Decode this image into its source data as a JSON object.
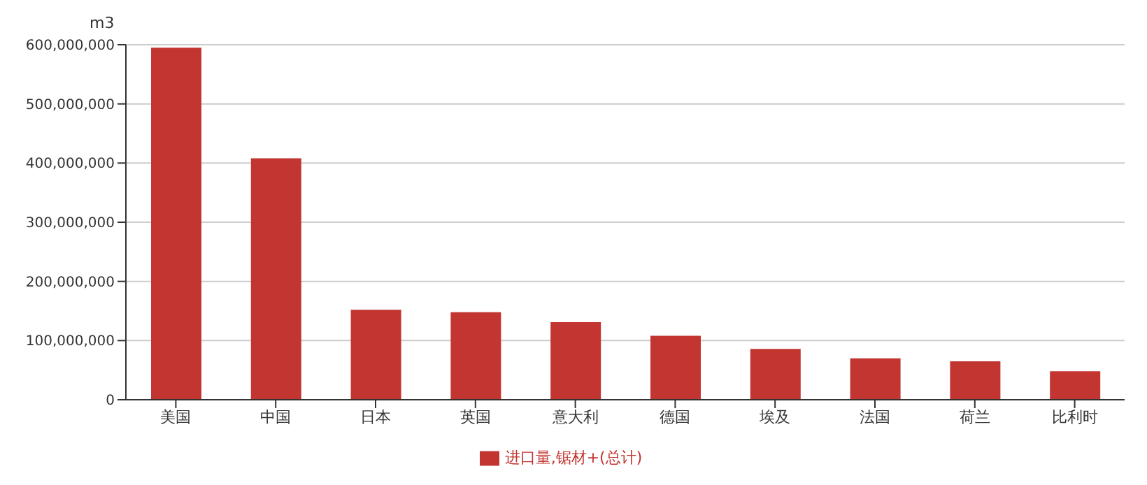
{
  "chart_data": {
    "type": "bar",
    "ylabel": "m3",
    "categories": [
      "美国",
      "中国",
      "日本",
      "英国",
      "意大利",
      "德国",
      "埃及",
      "法国",
      "荷兰",
      "比利时"
    ],
    "series": [
      {
        "name": "进口量,锯材+(总计)",
        "color": "#c23531",
        "values": [
          595000000,
          408000000,
          152000000,
          148000000,
          131000000,
          108000000,
          86000000,
          70000000,
          65000000,
          48000000
        ]
      }
    ],
    "ylim": [
      0,
      600000000
    ],
    "yticks": [
      0,
      {
        "value": 100000000,
        "label": "100,000,000"
      },
      {
        "value": 200000000,
        "label": "200,000,000"
      },
      {
        "value": 300000000,
        "label": "300,000,000"
      },
      {
        "value": 400000000,
        "label": "400,000,000"
      },
      {
        "value": 500000000,
        "label": "500,000,000"
      },
      {
        "value": 600000000,
        "label": "600,000,000"
      }
    ],
    "grid": "y",
    "legend": "bottom"
  }
}
